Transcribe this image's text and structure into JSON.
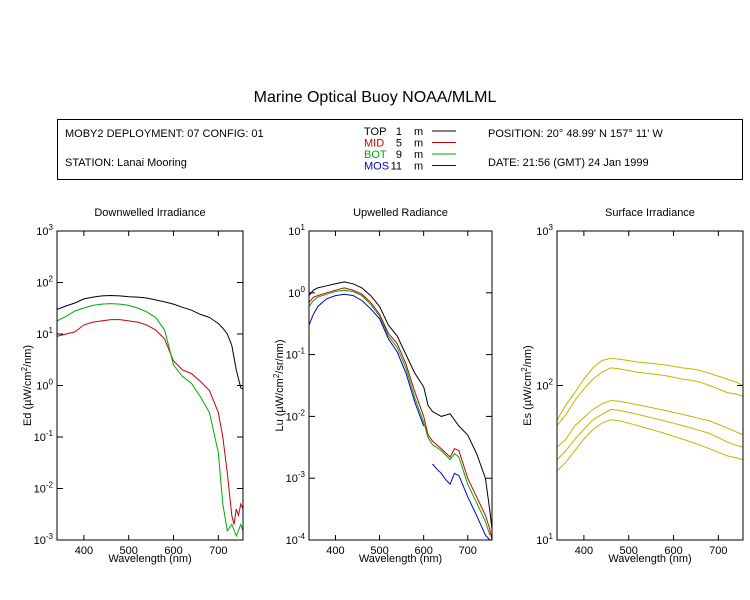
{
  "header": {
    "title": "Marine Optical Buoy NOAA/MLML",
    "deployment": "MOBY2 DEPLOYMENT: 07 CONFIG: 01",
    "station": "STATION: Lanai Mooring",
    "position": "POSITION: 20° 48.99' N   157° 11' W",
    "date": "DATE: 21:56 (GMT) 24 Jan 1999"
  },
  "legend": [
    {
      "name": "TOP",
      "depth": "1",
      "unit": "m",
      "color": "#000000"
    },
    {
      "name": "MID",
      "depth": "5",
      "unit": "m",
      "color": "#cc0000"
    },
    {
      "name": "BOT",
      "depth": "9",
      "unit": "m",
      "color": "#00aa00"
    },
    {
      "name": "MOS",
      "depth": "11",
      "unit": "m",
      "color": "#0000cc"
    }
  ],
  "chart_data": [
    {
      "type": "line",
      "title": "Downwelled Irradiance",
      "xlabel": "Wavelength (nm)",
      "ylabel_pre": "Ed  (µW/cm",
      "ylabel_sup": "2",
      "ylabel_post": "/nm)",
      "xlim": [
        340,
        755
      ],
      "ylim": [
        0.001,
        1000
      ],
      "yscale": "log",
      "xticks": [
        400,
        500,
        600,
        700
      ],
      "xtick_labels": [
        "400",
        "500",
        "600",
        "700"
      ],
      "yticks": [
        -3,
        -2,
        -1,
        0,
        1,
        2,
        3
      ],
      "ytick_labels": [
        "-3",
        "-2",
        "-1",
        "0",
        "1",
        "2",
        "3"
      ],
      "ytick_base": "10",
      "series": [
        {
          "name": "TOP",
          "color": "#000000",
          "x": [
            340,
            360,
            380,
            400,
            420,
            440,
            460,
            480,
            500,
            520,
            540,
            560,
            580,
            600,
            620,
            640,
            660,
            680,
            700,
            710,
            720,
            730,
            740,
            750,
            755
          ],
          "y": [
            30,
            35,
            40,
            48,
            52,
            55,
            56,
            55,
            53,
            52,
            50,
            46,
            42,
            38,
            33,
            29,
            24,
            21,
            16,
            13,
            10,
            6,
            2,
            0.9,
            0.85
          ]
        },
        {
          "name": "MID",
          "color": "#cc0000",
          "x": [
            340,
            360,
            380,
            400,
            420,
            440,
            460,
            480,
            500,
            520,
            540,
            560,
            580,
            600,
            620,
            640,
            660,
            680,
            700,
            710,
            720,
            730,
            735,
            740,
            745,
            750,
            755
          ],
          "y": [
            9,
            10,
            11,
            15,
            17,
            18,
            19,
            19,
            18,
            17,
            15,
            12,
            8,
            3,
            2,
            1.7,
            1.2,
            0.8,
            0.3,
            0.1,
            0.02,
            0.003,
            0.002,
            0.004,
            0.003,
            0.005,
            0.004
          ]
        },
        {
          "name": "BOT",
          "color": "#00aa00",
          "x": [
            340,
            360,
            380,
            400,
            420,
            440,
            460,
            480,
            500,
            520,
            540,
            560,
            580,
            600,
            620,
            640,
            660,
            680,
            700,
            710,
            720,
            730,
            740,
            750,
            755
          ],
          "y": [
            18,
            22,
            28,
            32,
            36,
            38,
            39,
            38,
            36,
            32,
            27,
            21,
            12,
            2.5,
            1.5,
            1.1,
            0.6,
            0.3,
            0.05,
            0.005,
            0.0015,
            0.002,
            0.0012,
            0.002,
            0.0015
          ]
        }
      ]
    },
    {
      "type": "line",
      "title": "Upwelled Radiance",
      "xlabel": "Wavelength (nm)",
      "ylabel_pre": "Lu  (µW/cm",
      "ylabel_sup": "2",
      "ylabel_post": "/sr/nm)",
      "xlim": [
        340,
        755
      ],
      "ylim": [
        0.0001,
        10
      ],
      "yscale": "log",
      "xticks": [
        400,
        500,
        600,
        700
      ],
      "xtick_labels": [
        "400",
        "500",
        "600",
        "700"
      ],
      "yticks": [
        -4,
        -3,
        -2,
        -1,
        0,
        1
      ],
      "ytick_labels": [
        "-4",
        "-3",
        "-2",
        "-1",
        "0",
        "1"
      ],
      "ytick_base": "10",
      "series": [
        {
          "name": "TOP",
          "color": "#000000",
          "x": [
            340,
            350,
            360,
            380,
            400,
            420,
            440,
            460,
            480,
            500,
            520,
            540,
            560,
            580,
            600,
            610,
            620,
            640,
            660,
            680,
            700,
            720,
            740,
            750,
            755
          ],
          "y": [
            0.9,
            1.1,
            1.2,
            1.3,
            1.4,
            1.5,
            1.4,
            1.2,
            0.9,
            0.6,
            0.3,
            0.2,
            0.1,
            0.05,
            0.03,
            0.015,
            0.012,
            0.01,
            0.011,
            0.007,
            0.005,
            0.0025,
            0.001,
            0.0003,
            0.00015
          ]
        },
        {
          "name": "MID",
          "color": "#cc0000",
          "x": [
            340,
            350,
            360,
            380,
            400,
            420,
            440,
            460,
            480,
            500,
            520,
            540,
            560,
            580,
            600,
            610,
            620,
            640,
            660,
            670,
            680,
            700,
            720,
            740,
            750,
            755
          ],
          "y": [
            0.7,
            0.85,
            0.9,
            1.0,
            1.1,
            1.2,
            1.1,
            0.95,
            0.7,
            0.45,
            0.22,
            0.15,
            0.07,
            0.025,
            0.01,
            0.005,
            0.004,
            0.003,
            0.0022,
            0.003,
            0.0028,
            0.001,
            0.0005,
            0.00025,
            0.00015,
            0.0001
          ]
        },
        {
          "name": "BOT",
          "color": "#00aa00",
          "x": [
            340,
            350,
            360,
            380,
            400,
            420,
            440,
            460,
            480,
            500,
            520,
            540,
            560,
            580,
            600,
            610,
            620,
            640,
            660,
            670,
            680,
            700,
            720,
            740,
            750
          ],
          "y": [
            0.6,
            0.75,
            0.85,
            0.95,
            1.05,
            1.1,
            1.05,
            0.9,
            0.65,
            0.42,
            0.2,
            0.13,
            0.06,
            0.02,
            0.008,
            0.0045,
            0.0035,
            0.0028,
            0.002,
            0.0025,
            0.0022,
            0.0008,
            0.0004,
            0.0002,
            0.00012
          ]
        },
        {
          "name": "MOS",
          "color": "#0000cc",
          "x": [
            340,
            350,
            360,
            380,
            400,
            420,
            440,
            460,
            480,
            500,
            520,
            540,
            560,
            580,
            600
          ],
          "y": [
            0.3,
            0.45,
            0.6,
            0.8,
            0.9,
            0.95,
            0.9,
            0.75,
            0.55,
            0.38,
            0.18,
            0.11,
            0.05,
            0.017,
            0.007
          ]
        },
        {
          "name": "MOS",
          "color": "#0000cc",
          "x": [
            620,
            630,
            640,
            650,
            660,
            670,
            680,
            700,
            720,
            740,
            750
          ],
          "y": [
            0.0017,
            0.0014,
            0.0012,
            0.00095,
            0.0008,
            0.0012,
            0.0011,
            0.0005,
            0.00025,
            0.00012,
            0.0001
          ]
        }
      ]
    },
    {
      "type": "line",
      "title": "Surface Irradiance",
      "xlabel": "Wavelength (nm)",
      "ylabel_pre": "Es  (µW/cm",
      "ylabel_sup": "2",
      "ylabel_post": "/nm)",
      "xlim": [
        340,
        755
      ],
      "ylim": [
        10,
        1000
      ],
      "yscale": "log",
      "xticks": [
        400,
        500,
        600,
        700
      ],
      "xtick_labels": [
        "400",
        "500",
        "600",
        "700"
      ],
      "yticks": [
        1,
        2,
        3
      ],
      "ytick_labels": [
        "1",
        "2",
        "3"
      ],
      "ytick_base": "10",
      "series": [
        {
          "name": "Es",
          "color": "#c8b400",
          "x": [
            340,
            360,
            380,
            400,
            420,
            440,
            460,
            480,
            500,
            520,
            540,
            560,
            580,
            600,
            620,
            640,
            660,
            680,
            700,
            720,
            740,
            755
          ],
          "y": [
            60,
            75,
            90,
            110,
            130,
            145,
            150,
            148,
            145,
            142,
            140,
            138,
            136,
            133,
            130,
            128,
            125,
            120,
            115,
            110,
            105,
            100
          ]
        },
        {
          "name": "Es",
          "color": "#c8b400",
          "x": [
            340,
            360,
            380,
            400,
            420,
            440,
            460,
            480,
            500,
            520,
            540,
            560,
            580,
            600,
            620,
            640,
            660,
            680,
            700,
            720,
            740,
            755
          ],
          "y": [
            55,
            65,
            80,
            95,
            110,
            122,
            130,
            128,
            125,
            122,
            120,
            118,
            116,
            113,
            110,
            108,
            105,
            100,
            95,
            90,
            88,
            85
          ]
        },
        {
          "name": "Es",
          "color": "#c8b400",
          "x": [
            340,
            360,
            380,
            400,
            420,
            440,
            460,
            480,
            500,
            520,
            540,
            560,
            580,
            600,
            620,
            640,
            660,
            680,
            700,
            720,
            740,
            755
          ],
          "y": [
            40,
            45,
            55,
            62,
            70,
            76,
            80,
            79,
            77,
            75,
            73,
            71,
            69,
            67,
            65,
            63,
            61,
            59,
            56,
            53,
            50,
            48
          ]
        },
        {
          "name": "Es",
          "color": "#c8b400",
          "x": [
            340,
            360,
            380,
            400,
            420,
            440,
            460,
            480,
            500,
            520,
            540,
            560,
            580,
            600,
            620,
            640,
            660,
            680,
            700,
            720,
            740,
            755
          ],
          "y": [
            33,
            38,
            45,
            52,
            60,
            65,
            70,
            69,
            67,
            65,
            63,
            61,
            59,
            57,
            55,
            53,
            51,
            49,
            46,
            43,
            41,
            40
          ]
        },
        {
          "name": "Es",
          "color": "#c8b400",
          "x": [
            340,
            360,
            380,
            400,
            420,
            440,
            460,
            480,
            500,
            520,
            540,
            560,
            580,
            600,
            620,
            640,
            660,
            680,
            700,
            720,
            740,
            755
          ],
          "y": [
            28,
            32,
            38,
            45,
            52,
            57,
            60,
            59,
            57,
            55,
            53,
            51,
            49,
            47,
            45,
            43,
            41,
            39,
            37,
            35,
            34,
            33
          ]
        }
      ]
    }
  ]
}
